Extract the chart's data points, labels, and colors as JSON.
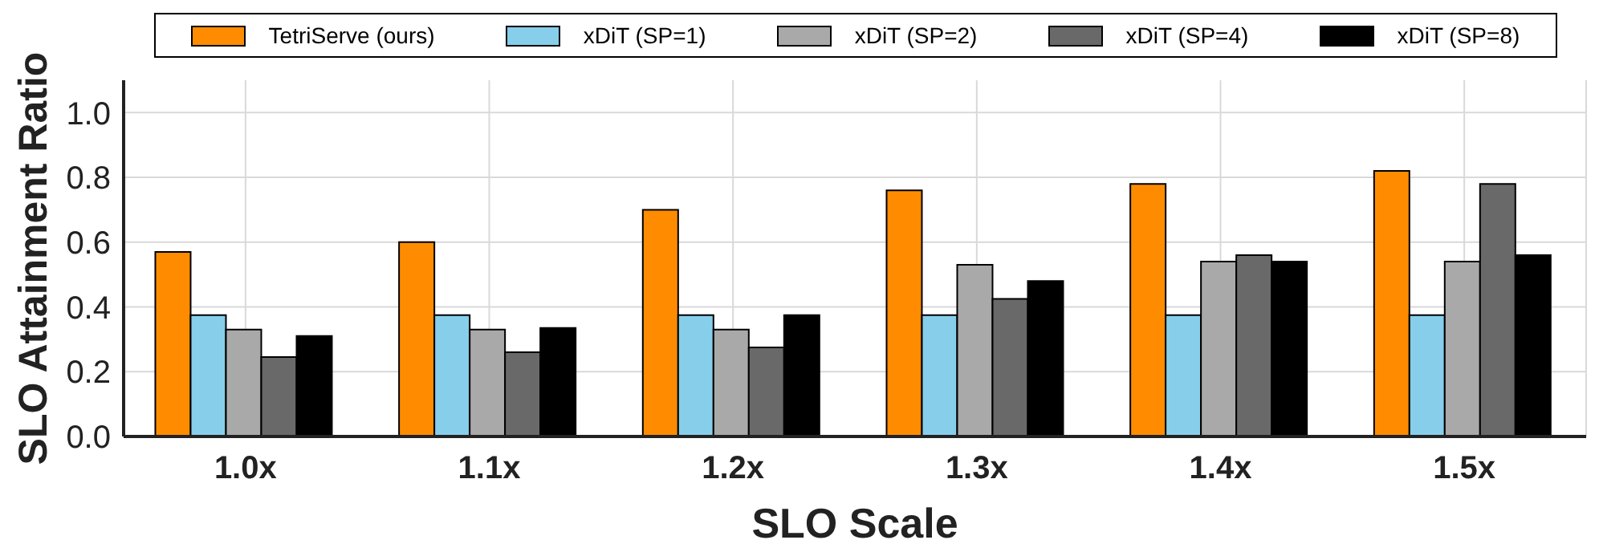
{
  "chart_data": {
    "type": "bar",
    "xlabel": "SLO Scale",
    "ylabel": "SLO Attainment Ratio",
    "categories": [
      "1.0x",
      "1.1x",
      "1.2x",
      "1.3x",
      "1.4x",
      "1.5x"
    ],
    "series": [
      {
        "name": "TetriServe (ours)",
        "color": "#ff8c00",
        "values": [
          0.57,
          0.6,
          0.7,
          0.76,
          0.78,
          0.82
        ]
      },
      {
        "name": "xDiT (SP=1)",
        "color": "#87ceeb",
        "values": [
          0.375,
          0.375,
          0.375,
          0.375,
          0.375,
          0.375
        ]
      },
      {
        "name": "xDiT (SP=2)",
        "color": "#a9a9a9",
        "values": [
          0.33,
          0.33,
          0.33,
          0.53,
          0.54,
          0.54
        ]
      },
      {
        "name": "xDiT (SP=4)",
        "color": "#696969",
        "values": [
          0.245,
          0.26,
          0.275,
          0.425,
          0.56,
          0.78
        ]
      },
      {
        "name": "xDiT (SP=8)",
        "color": "#000000",
        "values": [
          0.31,
          0.335,
          0.375,
          0.48,
          0.54,
          0.56
        ]
      }
    ],
    "ylim": [
      0,
      1.1
    ],
    "yticks": [
      {
        "value": 0,
        "label": "0.0"
      },
      {
        "value": 0.2,
        "label": "0.2"
      },
      {
        "value": 0.4,
        "label": "0.4"
      },
      {
        "value": 0.6,
        "label": "0.6"
      },
      {
        "value": 0.8,
        "label": "0.8"
      },
      {
        "value": 1,
        "label": "1.0"
      }
    ],
    "grid": true,
    "legend": "top"
  }
}
